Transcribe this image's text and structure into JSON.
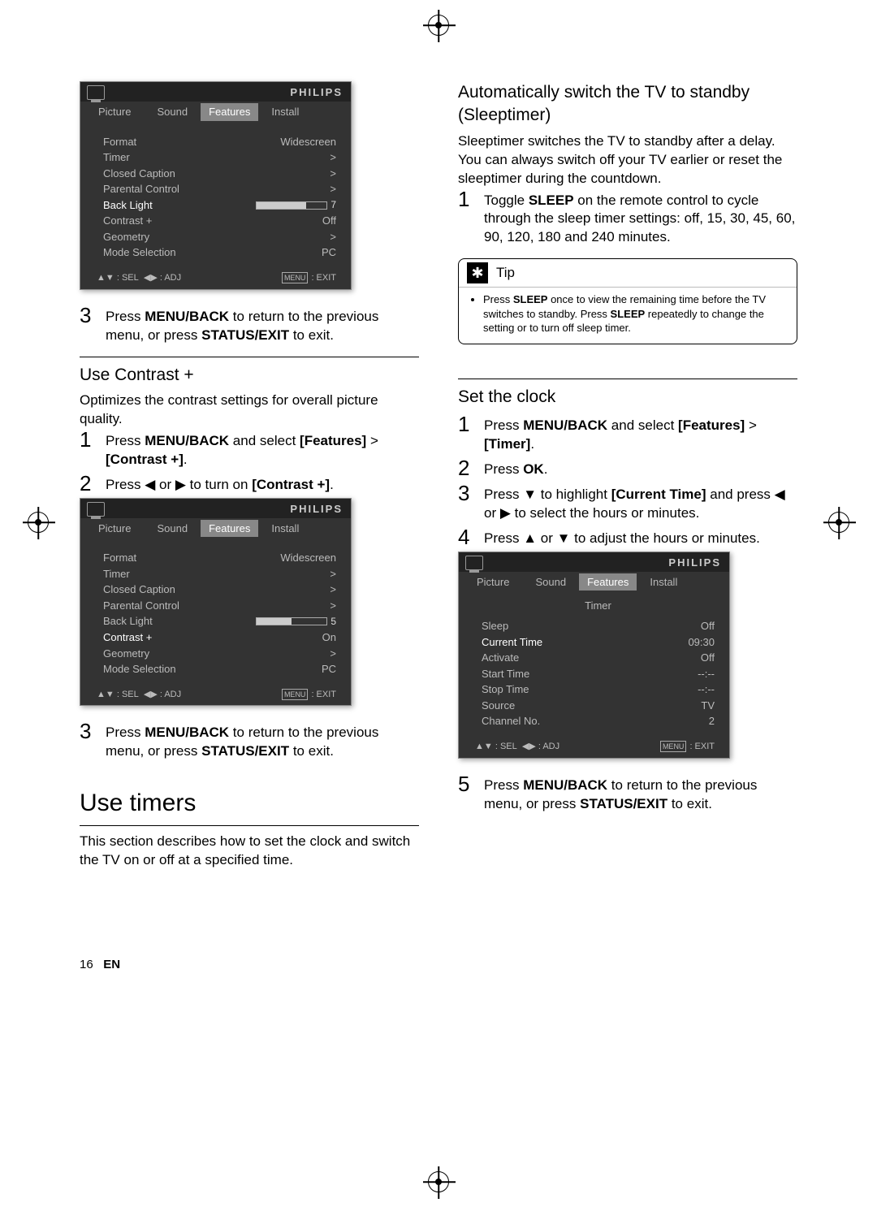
{
  "page_number": "16",
  "lang": "EN",
  "brand": "PHILIPS",
  "tabs": {
    "picture": "Picture",
    "sound": "Sound",
    "features": "Features",
    "install": "Install"
  },
  "menu_footer": {
    "sel": ": SEL",
    "adj": ": ADJ",
    "exit": ": EXIT",
    "exit_badge": "MENU"
  },
  "arrow_glyphs": {
    "ud": "▲▼",
    "lr": "◀▶",
    "up": "▲",
    "down": "▼",
    "left": "◀",
    "right": "▶"
  },
  "menu1": {
    "rows": [
      {
        "label": "Format",
        "value": "Widescreen"
      },
      {
        "label": "Timer",
        "value": ">"
      },
      {
        "label": "Closed Caption",
        "value": ">"
      },
      {
        "label": "Parental Control",
        "value": ">"
      },
      {
        "label": "Back Light",
        "value": "",
        "slider": 7,
        "hl": true
      },
      {
        "label": "Contrast +",
        "value": "Off"
      },
      {
        "label": "Geometry",
        "value": ">"
      },
      {
        "label": "Mode Selection",
        "value": "PC"
      }
    ]
  },
  "menu2": {
    "rows": [
      {
        "label": "Format",
        "value": "Widescreen"
      },
      {
        "label": "Timer",
        "value": ">"
      },
      {
        "label": "Closed Caption",
        "value": ">"
      },
      {
        "label": "Parental Control",
        "value": ">"
      },
      {
        "label": "Back Light",
        "value": "",
        "slider": 5
      },
      {
        "label": "Contrast +",
        "value": "On",
        "hl": true
      },
      {
        "label": "Geometry",
        "value": ">"
      },
      {
        "label": "Mode Selection",
        "value": "PC"
      }
    ]
  },
  "menu3": {
    "title": "Timer",
    "rows": [
      {
        "label": "Sleep",
        "value": "Off"
      },
      {
        "label": "Current Time",
        "value": "09:30",
        "hl": true
      },
      {
        "label": "Activate",
        "value": "Off"
      },
      {
        "label": "Start Time",
        "value": "--:--"
      },
      {
        "label": "Stop Time",
        "value": "--:--"
      },
      {
        "label": "Source",
        "value": "TV"
      },
      {
        "label": "Channel No.",
        "value": "2"
      }
    ]
  },
  "left": {
    "step3a_pre": "Press ",
    "step3a_b1": "MENU/BACK",
    "step3a_mid": " to return to the previous menu, or press ",
    "step3a_b2": "STATUS/EXIT",
    "step3a_post": " to exit.",
    "contrast_h": "Use Contrast +",
    "contrast_p": "Optimizes the contrast settings for overall picture quality.",
    "c1_pre": "Press ",
    "c1_b1": "MENU/BACK",
    "c1_mid": " and select ",
    "c1_b2": "[Features]",
    "c1_gt": " > ",
    "c1_b3": "[Contrast +]",
    "c1_post": ".",
    "c2_pre": "Press ",
    "c2_mid": " or ",
    "c2_mid2": " to turn on ",
    "c2_b": "[Contrast +]",
    "c2_post": ".",
    "timers_h": "Use timers",
    "timers_p": "This section describes how to set the clock and switch the TV on or off at a specified time."
  },
  "right": {
    "sleep_h": "Automatically switch the TV to standby (Sleeptimer)",
    "sleep_p": "Sleeptimer switches the TV to standby after a delay. You can always switch off your TV earlier or reset the sleeptimer during the countdown.",
    "s1_pre": "Toggle ",
    "s1_b": "SLEEP",
    "s1_post": " on the remote control to cycle through the sleep timer settings: off, 15, 30, 45, 60, 90, 120, 180 and 240 minutes.",
    "tip_label": "Tip",
    "tip_pre": "Press ",
    "tip_b1": "SLEEP",
    "tip_mid": " once to view the remaining time before the TV switches to standby. Press ",
    "tip_b2": "SLEEP",
    "tip_post": " repeatedly to change the setting or to turn off sleep timer.",
    "clock_h": "Set the clock",
    "k1_pre": "Press ",
    "k1_b1": "MENU/BACK",
    "k1_mid": " and select ",
    "k1_b2": "[Features]",
    "k1_gt": " > ",
    "k1_b3": "[Timer]",
    "k1_post": ".",
    "k2_pre": "Press ",
    "k2_b": "OK",
    "k2_post": ".",
    "k3_pre": "Press ",
    "k3_mid1": " to highlight ",
    "k3_b": "[Current Time]",
    "k3_mid2": " and press ",
    "k3_mid3": " or ",
    "k3_post": " to select the hours or minutes.",
    "k4_pre": "Press ",
    "k4_mid1": " or ",
    "k4_post": " to adjust the hours or minutes.",
    "k5_pre": "Press ",
    "k5_b1": "MENU/BACK",
    "k5_mid": " to return to the previous menu, or press ",
    "k5_b2": "STATUS/EXIT",
    "k5_post": " to exit."
  }
}
